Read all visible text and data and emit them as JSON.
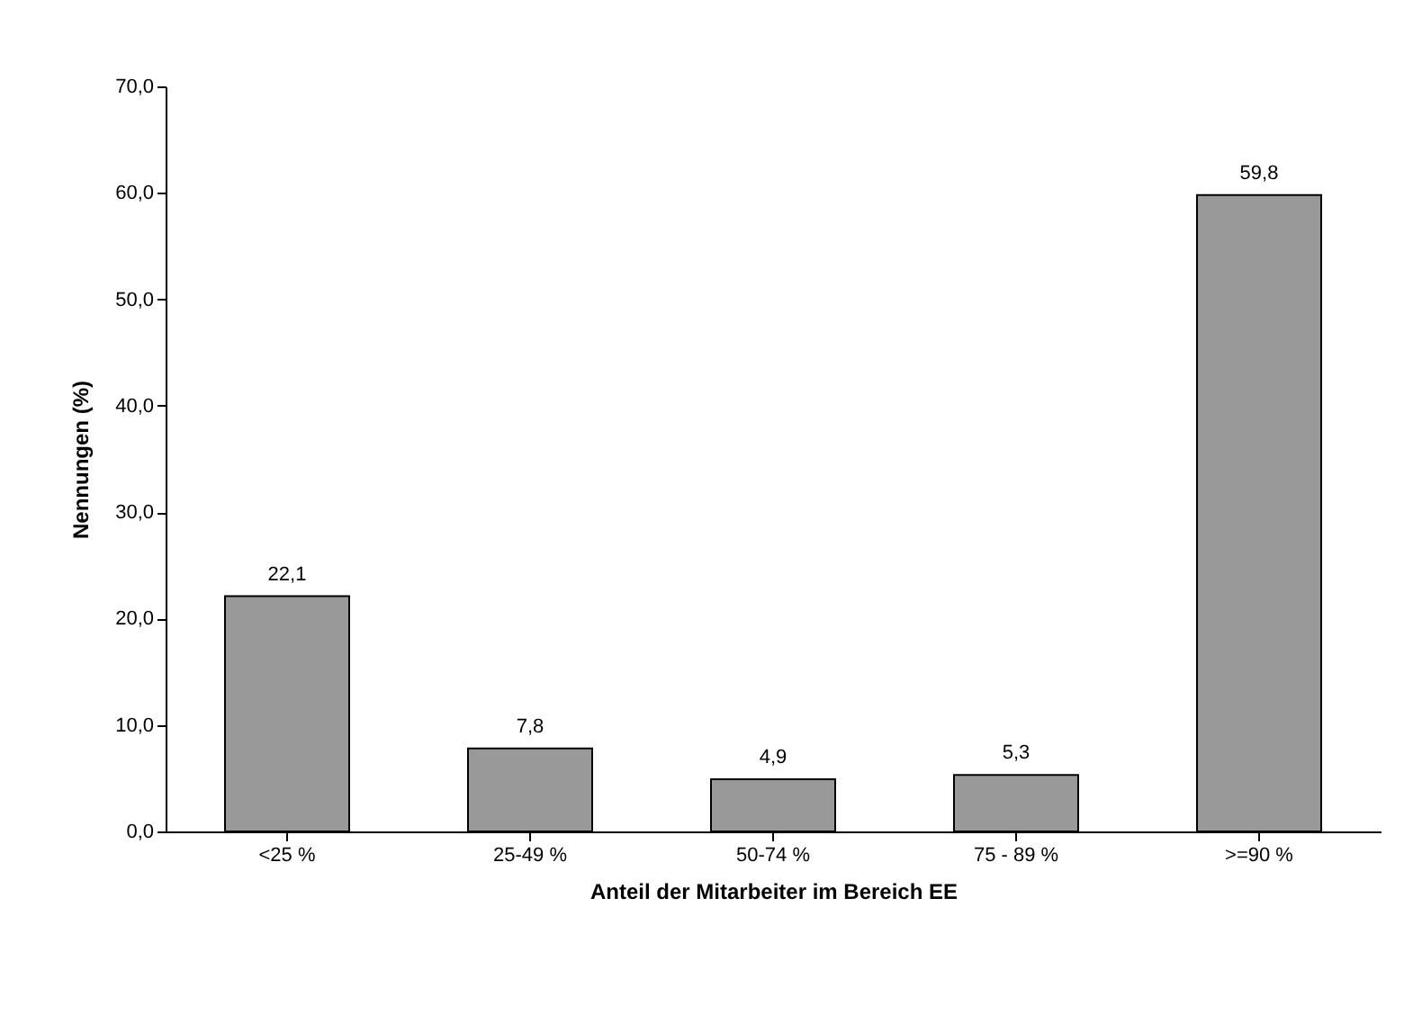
{
  "chart_data": {
    "type": "bar",
    "xlabel": "Anteil der Mitarbeiter im Bereich EE",
    "ylabel": "Nennungen (%)",
    "categories": [
      "<25 %",
      "25-49 %",
      "50-74 %",
      "75 - 89 %",
      ">=90 %"
    ],
    "values": [
      22.1,
      7.8,
      4.9,
      5.3,
      59.8
    ],
    "color": "#999999",
    "value_labels": [
      "22,1",
      "7,8",
      "4,9",
      "5,3",
      "59,8"
    ],
    "ylim": [
      0,
      70
    ],
    "yticks": [
      {
        "value": 0,
        "label": "0,0"
      },
      {
        "value": 10,
        "label": "10,0"
      },
      {
        "value": 20,
        "label": "20,0"
      },
      {
        "value": 30,
        "label": "30,0"
      },
      {
        "value": 40,
        "label": "40,0"
      },
      {
        "value": 50,
        "label": "50,0"
      },
      {
        "value": 60,
        "label": "60,0"
      },
      {
        "value": 70,
        "label": "70,0"
      }
    ],
    "grid": false
  }
}
